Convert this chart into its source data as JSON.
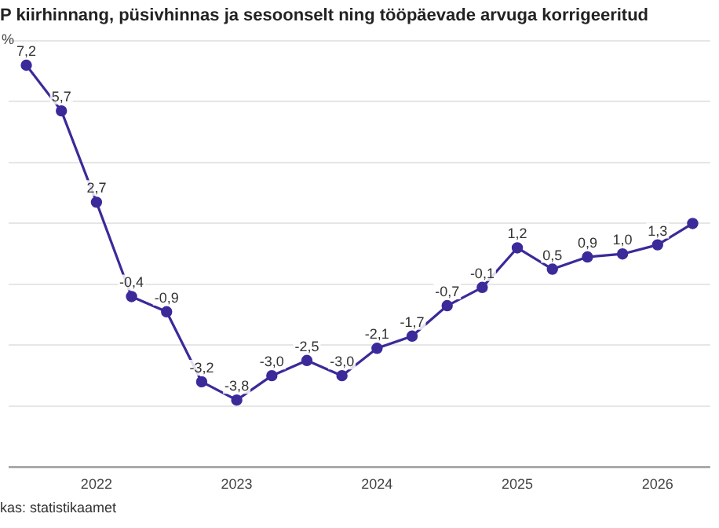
{
  "chart_data": {
    "type": "line",
    "title": "P kiirhinnang, püsivhinnas ja sesoonselt ning tööpäevade arvuga korrigeeritud",
    "ylabel": "%",
    "categories": [
      null,
      null,
      "2022",
      null,
      null,
      null,
      "2023",
      null,
      null,
      null,
      "2024",
      null,
      null,
      null,
      "2025",
      null,
      null,
      null,
      "2026",
      null
    ],
    "series": [
      {
        "color": "#3a2a9a",
        "values": [
          7.2,
          5.7,
          2.7,
          -0.4,
          -0.9,
          -3.2,
          -3.8,
          -3.0,
          -2.5,
          -3.0,
          -2.1,
          -1.7,
          -0.7,
          -0.1,
          1.2,
          0.5,
          0.9,
          1.0,
          1.3,
          2.0
        ],
        "value_labels": [
          "7,2",
          "5,7",
          "2,7",
          "-0,4",
          "-0,9",
          "-3,2",
          "-3,8",
          "-3,0",
          "-2,5",
          "-3,0",
          "-2,1",
          "-1,7",
          "-0,7",
          "-0,1",
          "1,2",
          "0,5",
          "0,9",
          "1,0",
          "1,3",
          null
        ]
      }
    ],
    "ylim": [
      -6,
      8
    ],
    "yticks": [
      {
        "value": -6,
        "label": null
      },
      {
        "value": -4,
        "label": null
      },
      {
        "value": -2,
        "label": null
      },
      {
        "value": 0,
        "label": null
      },
      {
        "value": 2,
        "label": null
      },
      {
        "value": 4,
        "label": null
      },
      {
        "value": 6,
        "label": null
      },
      {
        "value": 8,
        "label": null
      }
    ],
    "tick_labels": "x",
    "grid": "y",
    "legend": false,
    "marker": "circle",
    "line_style": "solid",
    "annotations": [
      "kas: statistikaamet"
    ]
  }
}
